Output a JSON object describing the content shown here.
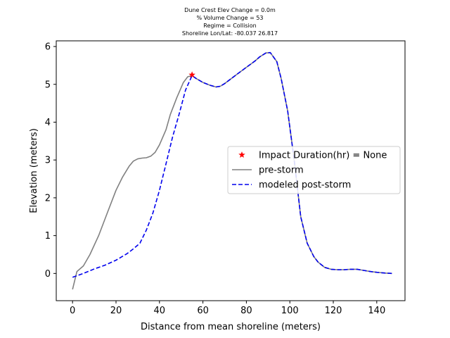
{
  "chart_data": {
    "type": "line",
    "title_lines": [
      "Dune Crest Elev Change = 0.0m",
      "% Volume Change = 53",
      "Regime = Collision",
      "Shoreline Lon/Lat: -80.037 26.817"
    ],
    "xlabel": "Distance from mean shoreline (meters)",
    "ylabel": "Elevation (meters)",
    "xlim": [
      -7.5,
      153
    ],
    "ylim": [
      -0.72,
      6.15
    ],
    "xticks": [
      0,
      20,
      40,
      60,
      80,
      100,
      120,
      140
    ],
    "yticks": [
      0,
      1,
      2,
      3,
      4,
      5,
      6
    ],
    "grid": false,
    "legend_position": "center-right",
    "series": [
      {
        "name": "pre-storm",
        "style": "solid",
        "color": "#808080",
        "x": [
          0,
          2,
          5,
          8,
          12,
          16,
          20,
          23,
          26,
          28,
          30,
          32,
          34,
          36,
          38,
          40,
          43,
          45,
          48,
          51,
          53,
          55,
          57,
          60,
          63,
          66,
          68,
          70,
          73,
          76,
          80,
          84,
          86,
          89,
          91,
          94,
          96,
          99,
          102,
          105,
          108,
          111,
          113,
          116,
          119,
          122,
          125,
          128,
          131,
          134,
          137,
          140,
          144,
          147
        ],
        "y": [
          -0.42,
          0.05,
          0.2,
          0.5,
          1.0,
          1.6,
          2.2,
          2.55,
          2.83,
          2.97,
          3.03,
          3.05,
          3.06,
          3.1,
          3.2,
          3.4,
          3.8,
          4.2,
          4.65,
          5.05,
          5.2,
          5.23,
          5.15,
          5.05,
          4.98,
          4.93,
          4.95,
          5.02,
          5.15,
          5.28,
          5.45,
          5.62,
          5.72,
          5.83,
          5.84,
          5.6,
          5.15,
          4.3,
          3.0,
          1.5,
          0.8,
          0.45,
          0.3,
          0.16,
          0.11,
          0.1,
          0.1,
          0.11,
          0.11,
          0.08,
          0.05,
          0.03,
          0.01,
          0.0
        ]
      },
      {
        "name": "modeled post-storm",
        "style": "dashed",
        "color": "#0000ee",
        "x": [
          0,
          5,
          10,
          15,
          20,
          25,
          28,
          31,
          34,
          37,
          40,
          43,
          46,
          49,
          52,
          55,
          57,
          60,
          63,
          66,
          68,
          70,
          73,
          76,
          80,
          84,
          86,
          89,
          91,
          94,
          96,
          99,
          102,
          105,
          108,
          111,
          113,
          116,
          119,
          122,
          125,
          128,
          131,
          134,
          137,
          140,
          144,
          147
        ],
        "y": [
          -0.1,
          0.0,
          0.12,
          0.22,
          0.35,
          0.52,
          0.65,
          0.8,
          1.15,
          1.6,
          2.2,
          2.9,
          3.6,
          4.2,
          4.85,
          5.23,
          5.15,
          5.05,
          4.98,
          4.93,
          4.95,
          5.02,
          5.15,
          5.28,
          5.45,
          5.62,
          5.72,
          5.83,
          5.84,
          5.6,
          5.15,
          4.3,
          3.0,
          1.5,
          0.8,
          0.45,
          0.3,
          0.16,
          0.11,
          0.1,
          0.1,
          0.11,
          0.11,
          0.08,
          0.05,
          0.03,
          0.01,
          0.0
        ]
      }
    ],
    "markers": [
      {
        "name": "Impact Duration(hr) = None",
        "symbol": "star",
        "color": "#ff0000",
        "x": 55,
        "y": 5.25
      }
    ]
  }
}
